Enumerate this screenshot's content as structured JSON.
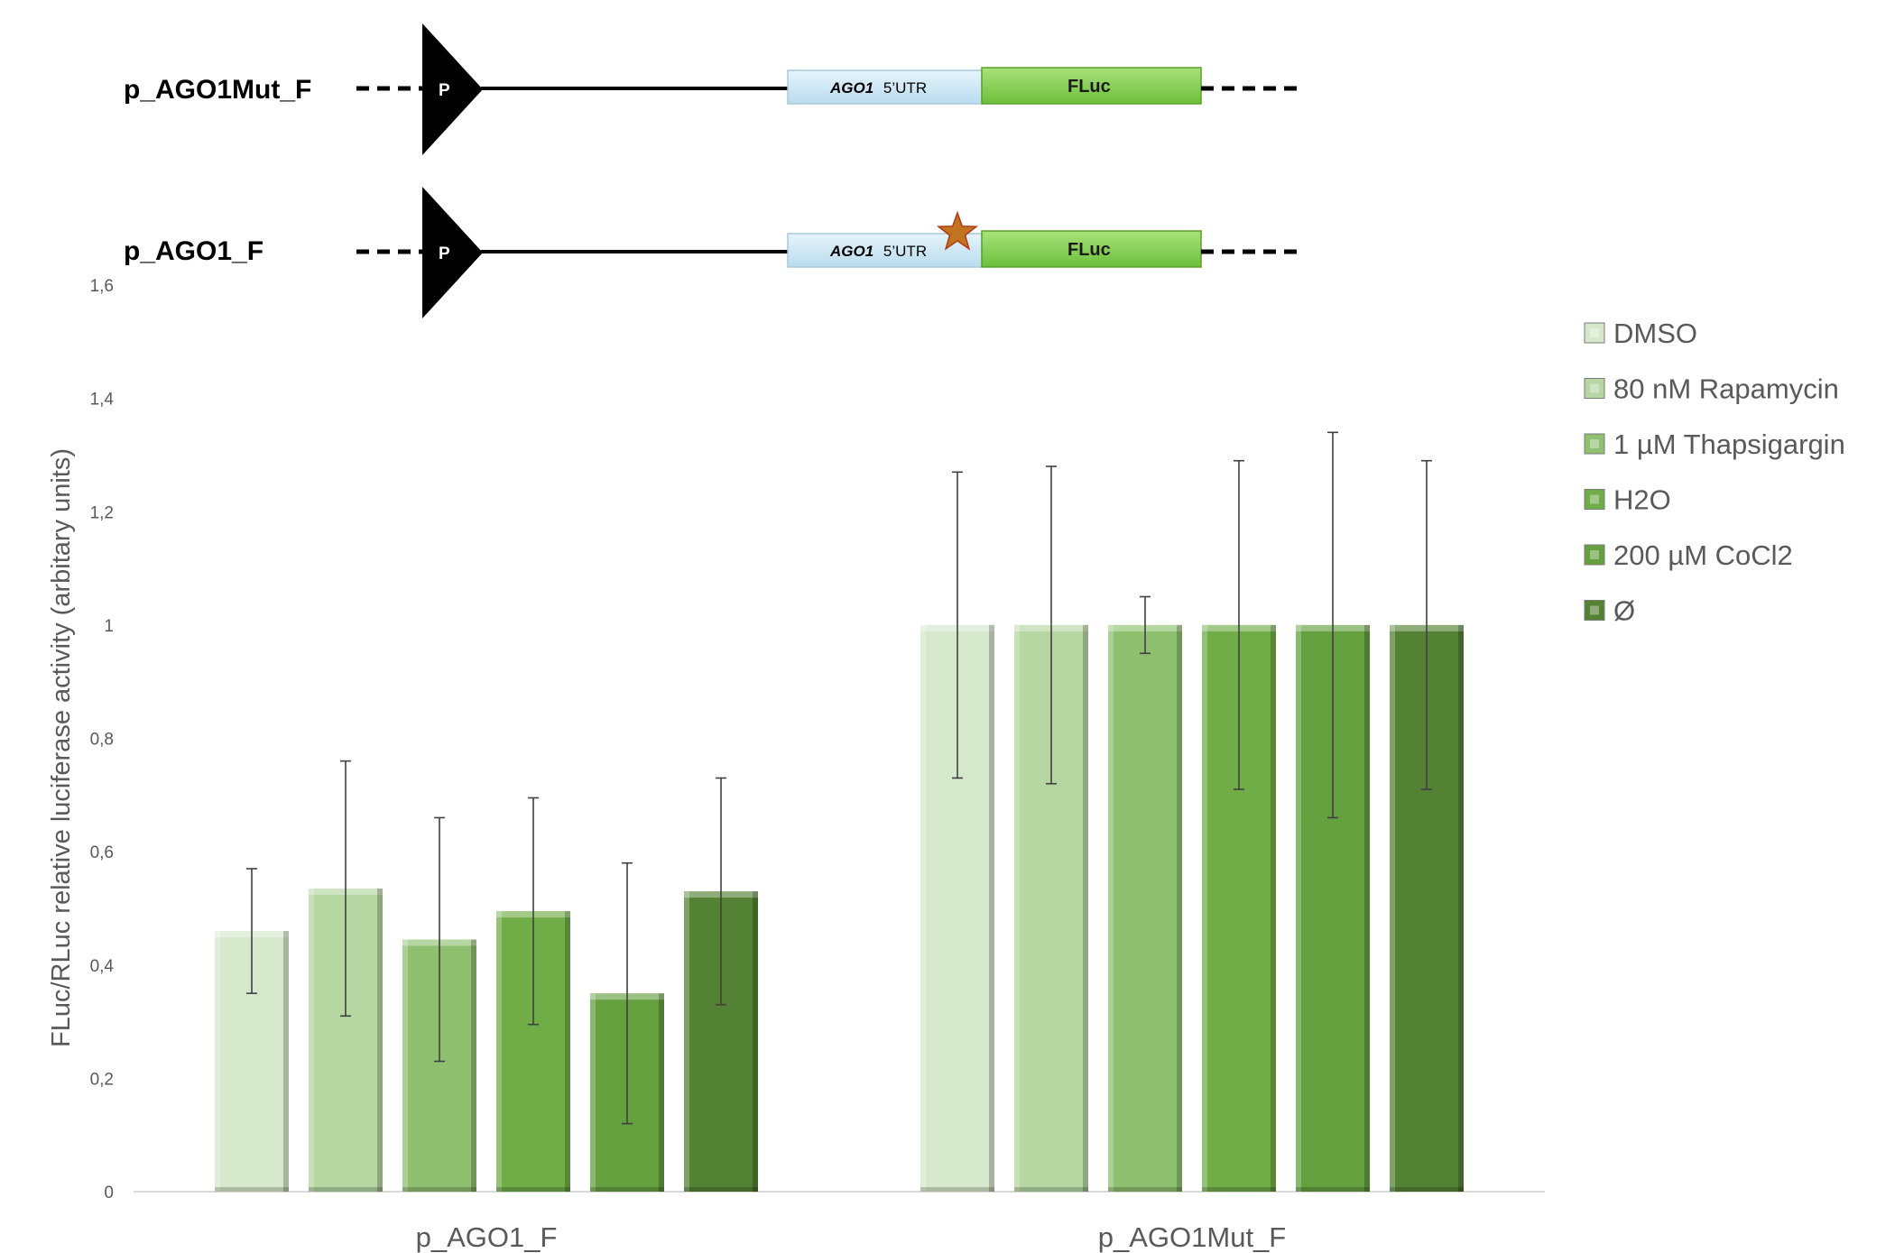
{
  "constructs": [
    {
      "name": "p_AGO1Mut_F",
      "promoter": "P",
      "utr_gene": "AGO1",
      "utr_suffix": "5’UTR",
      "reporter": "FLuc",
      "mutation_star": false
    },
    {
      "name": "p_AGO1_F",
      "promoter": "P",
      "utr_gene": "AGO1",
      "utr_suffix": "5’UTR",
      "reporter": "FLuc",
      "mutation_star": true
    }
  ],
  "colors": {
    "promoter": "#000000",
    "utr_box": "#cde7f5",
    "fluc_box": "#8fd15a",
    "star": "#c0741f",
    "axis": "#d9d9d9",
    "error_bar": "#404040"
  },
  "chart_data": {
    "type": "bar",
    "ylabel": "FLuc/RLuc relative luciferase activity (arbitary units)",
    "xlabel": "",
    "ylim": [
      0,
      1.6
    ],
    "yticks": [
      "0",
      "0,2",
      "0,4",
      "0,6",
      "0,8",
      "1",
      "1,2",
      "1,4",
      "1,6"
    ],
    "grid": false,
    "legend_position": "right",
    "categories": [
      "p_AGO1_F",
      "p_AGO1Mut_F"
    ],
    "series": [
      {
        "name": "DMSO",
        "color": "#d6e8cc",
        "values": [
          0.46,
          1.0
        ],
        "errors": [
          0.11,
          0.27
        ]
      },
      {
        "name": " 80 nM Rapamycin",
        "color": "#b6d6a2",
        "values": [
          0.535,
          1.0
        ],
        "errors": [
          0.225,
          0.28
        ]
      },
      {
        "name": "1 µM Thapsigargin",
        "color": "#8fc070",
        "values": [
          0.445,
          1.0
        ],
        "errors": [
          0.215,
          0.05
        ]
      },
      {
        "name": "H2O",
        "color": "#70ad47",
        "values": [
          0.495,
          1.0
        ],
        "errors": [
          0.2,
          0.29
        ]
      },
      {
        "name": "200 µM CoCl2",
        "color": "#65a03f",
        "values": [
          0.35,
          1.0
        ],
        "errors": [
          0.23,
          0.34
        ]
      },
      {
        "name": "Ø",
        "color": "#548235",
        "values": [
          0.53,
          1.0
        ],
        "errors": [
          0.2,
          0.29
        ]
      }
    ]
  }
}
